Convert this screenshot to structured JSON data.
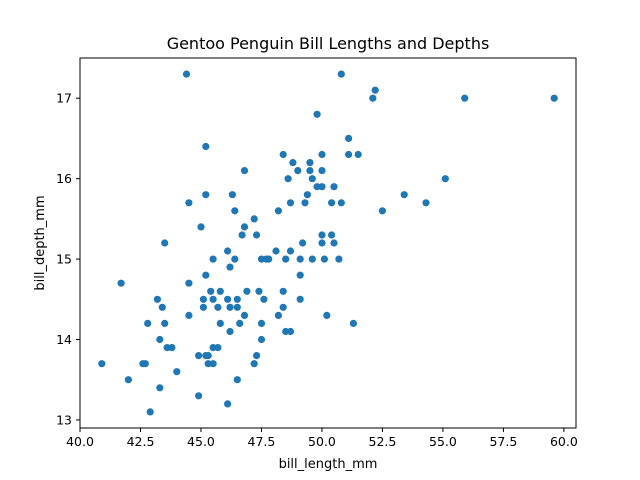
{
  "chart_data": {
    "type": "scatter",
    "title": "Gentoo Penguin Bill Lengths and Depths",
    "xlabel": "bill_length_mm",
    "ylabel": "bill_depth_mm",
    "xlim": [
      40.0,
      60.5
    ],
    "ylim": [
      12.9,
      17.5
    ],
    "xticks": [
      40.0,
      42.5,
      45.0,
      47.5,
      50.0,
      52.5,
      55.0,
      57.5,
      60.0
    ],
    "xtick_labels": [
      "40.0",
      "42.5",
      "45.0",
      "47.5",
      "50.0",
      "52.5",
      "55.0",
      "57.5",
      "60.0"
    ],
    "yticks": [
      13,
      14,
      15,
      16,
      17
    ],
    "ytick_labels": [
      "13",
      "14",
      "15",
      "16",
      "17"
    ],
    "grid": false,
    "marker_color": "#1f77b4",
    "points": [
      [
        40.9,
        13.7
      ],
      [
        41.7,
        14.7
      ],
      [
        42.0,
        13.5
      ],
      [
        42.6,
        13.7
      ],
      [
        42.7,
        13.7
      ],
      [
        42.8,
        14.2
      ],
      [
        42.9,
        13.1
      ],
      [
        43.2,
        14.5
      ],
      [
        43.3,
        14.0
      ],
      [
        43.3,
        13.4
      ],
      [
        43.4,
        14.4
      ],
      [
        43.5,
        14.2
      ],
      [
        43.5,
        15.2
      ],
      [
        43.6,
        13.9
      ],
      [
        43.8,
        13.9
      ],
      [
        44.0,
        13.6
      ],
      [
        44.4,
        17.3
      ],
      [
        44.5,
        15.7
      ],
      [
        44.5,
        14.7
      ],
      [
        44.5,
        14.3
      ],
      [
        44.9,
        13.3
      ],
      [
        44.9,
        13.8
      ],
      [
        45.0,
        15.4
      ],
      [
        45.1,
        14.5
      ],
      [
        45.1,
        14.4
      ],
      [
        45.2,
        14.8
      ],
      [
        45.2,
        15.8
      ],
      [
        45.2,
        16.4
      ],
      [
        45.2,
        13.8
      ],
      [
        45.3,
        13.8
      ],
      [
        45.3,
        13.7
      ],
      [
        45.4,
        14.6
      ],
      [
        45.5,
        15.0
      ],
      [
        45.5,
        14.5
      ],
      [
        45.5,
        13.7
      ],
      [
        45.5,
        13.9
      ],
      [
        45.7,
        13.9
      ],
      [
        45.8,
        14.6
      ],
      [
        45.8,
        14.2
      ],
      [
        45.7,
        14.4
      ],
      [
        46.1,
        13.2
      ],
      [
        46.1,
        15.1
      ],
      [
        46.1,
        14.5
      ],
      [
        46.2,
        14.9
      ],
      [
        46.2,
        14.1
      ],
      [
        46.2,
        14.4
      ],
      [
        46.3,
        15.8
      ],
      [
        46.4,
        15.6
      ],
      [
        46.4,
        15.0
      ],
      [
        46.5,
        14.5
      ],
      [
        46.5,
        14.4
      ],
      [
        46.5,
        13.5
      ],
      [
        46.6,
        14.2
      ],
      [
        46.7,
        15.3
      ],
      [
        46.8,
        16.1
      ],
      [
        46.8,
        15.4
      ],
      [
        46.8,
        14.3
      ],
      [
        46.9,
        14.6
      ],
      [
        47.2,
        15.5
      ],
      [
        47.2,
        13.7
      ],
      [
        47.3,
        13.8
      ],
      [
        47.3,
        15.3
      ],
      [
        47.4,
        14.6
      ],
      [
        47.5,
        14.2
      ],
      [
        47.5,
        15.0
      ],
      [
        47.5,
        14.0
      ],
      [
        47.6,
        14.5
      ],
      [
        47.7,
        15.0
      ],
      [
        47.8,
        15.0
      ],
      [
        48.1,
        15.1
      ],
      [
        48.2,
        14.3
      ],
      [
        48.2,
        15.6
      ],
      [
        48.4,
        14.6
      ],
      [
        48.4,
        16.3
      ],
      [
        48.4,
        14.4
      ],
      [
        48.5,
        14.1
      ],
      [
        48.5,
        15.0
      ],
      [
        48.6,
        16.0
      ],
      [
        48.7,
        14.1
      ],
      [
        48.7,
        15.7
      ],
      [
        48.7,
        15.1
      ],
      [
        48.8,
        16.2
      ],
      [
        49.0,
        16.1
      ],
      [
        49.1,
        14.5
      ],
      [
        49.1,
        15.0
      ],
      [
        49.1,
        14.8
      ],
      [
        49.2,
        15.2
      ],
      [
        49.3,
        15.7
      ],
      [
        49.4,
        15.8
      ],
      [
        49.5,
        16.2
      ],
      [
        49.5,
        16.1
      ],
      [
        49.6,
        15.0
      ],
      [
        49.6,
        16.0
      ],
      [
        49.8,
        16.8
      ],
      [
        49.8,
        15.9
      ],
      [
        50.0,
        15.3
      ],
      [
        50.0,
        15.9
      ],
      [
        50.0,
        15.2
      ],
      [
        50.0,
        16.3
      ],
      [
        50.0,
        16.1
      ],
      [
        50.1,
        15.0
      ],
      [
        50.2,
        14.3
      ],
      [
        50.4,
        15.3
      ],
      [
        50.4,
        15.7
      ],
      [
        50.5,
        15.9
      ],
      [
        50.5,
        15.2
      ],
      [
        50.7,
        15.0
      ],
      [
        50.8,
        17.3
      ],
      [
        50.8,
        15.7
      ],
      [
        51.1,
        16.5
      ],
      [
        51.1,
        16.3
      ],
      [
        51.3,
        14.2
      ],
      [
        51.5,
        16.3
      ],
      [
        52.1,
        17.0
      ],
      [
        52.2,
        17.1
      ],
      [
        52.5,
        15.6
      ],
      [
        53.4,
        15.8
      ],
      [
        54.3,
        15.7
      ],
      [
        55.1,
        16.0
      ],
      [
        55.9,
        17.0
      ],
      [
        59.6,
        17.0
      ]
    ]
  }
}
